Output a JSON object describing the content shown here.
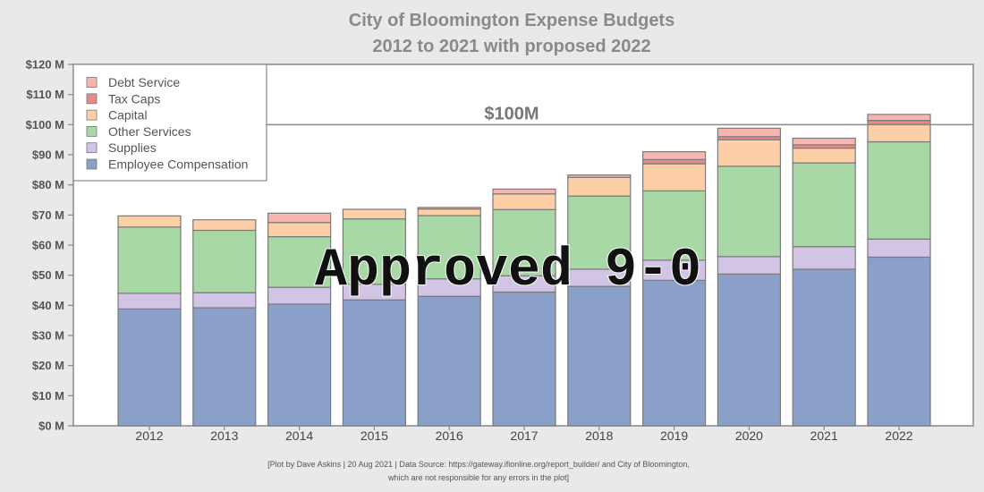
{
  "chart_data": {
    "type": "bar",
    "stacked": true,
    "title": "City of Bloomington Expense Budgets",
    "subtitle": "2012 to 2021 with proposed 2022",
    "categories": [
      "2012",
      "2013",
      "2014",
      "2015",
      "2016",
      "2017",
      "2018",
      "2019",
      "2020",
      "2021",
      "2022"
    ],
    "ylim": [
      0,
      120
    ],
    "yticks": [
      "$0 M",
      "$10 M",
      "$20 M",
      "$30 M",
      "$40 M",
      "$50 M",
      "$60 M",
      "$70 M",
      "$80 M",
      "$90 M",
      "$100 M",
      "$110 M",
      "$120 M"
    ],
    "grid": false,
    "legend_position": "top-left",
    "series": [
      {
        "name": "Employee Compensation",
        "color": "#8ba0c8",
        "values": [
          38.8,
          39.2,
          40.4,
          41.8,
          43.0,
          44.4,
          46.3,
          48.3,
          50.4,
          52.0,
          56.0
        ]
      },
      {
        "name": "Supplies",
        "color": "#d2c4e4",
        "values": [
          5.2,
          5.0,
          5.6,
          5.2,
          5.8,
          5.4,
          5.7,
          6.7,
          5.8,
          7.5,
          6.0
        ]
      },
      {
        "name": "Other Services",
        "color": "#a9d8a7",
        "values": [
          22.0,
          20.7,
          16.8,
          21.7,
          21.0,
          22.0,
          24.3,
          23.0,
          30.0,
          27.8,
          32.3
        ]
      },
      {
        "name": "Capital",
        "color": "#fccfa6",
        "values": [
          3.7,
          3.5,
          4.7,
          3.2,
          2.2,
          5.2,
          6.2,
          9.0,
          8.8,
          4.9,
          5.8
        ]
      },
      {
        "name": "Tax Caps",
        "color": "#e48a8a",
        "values": [
          0,
          0,
          0,
          0,
          0,
          0,
          0,
          1.4,
          1.0,
          1.1,
          1.3
        ]
      },
      {
        "name": "Debt Service",
        "color": "#f7b6b2",
        "values": [
          0,
          0,
          3.1,
          0,
          0.5,
          1.6,
          0.8,
          2.6,
          2.8,
          2.2,
          2.0
        ]
      }
    ],
    "legend_order": [
      "Debt Service",
      "Tax Caps",
      "Capital",
      "Other Services",
      "Supplies",
      "Employee Compensation"
    ],
    "reference_line": {
      "value": 100,
      "label": "$100M"
    },
    "annotation": "Approved 9-0",
    "caption_line1": "[Plot by Dave Askins | 20 Aug 2021 | Data Source: https://gateway.ifionline.org/report_builder/ and City of Bloomington,",
    "caption_line2": "which are not responsible for any errors in the plot]"
  }
}
